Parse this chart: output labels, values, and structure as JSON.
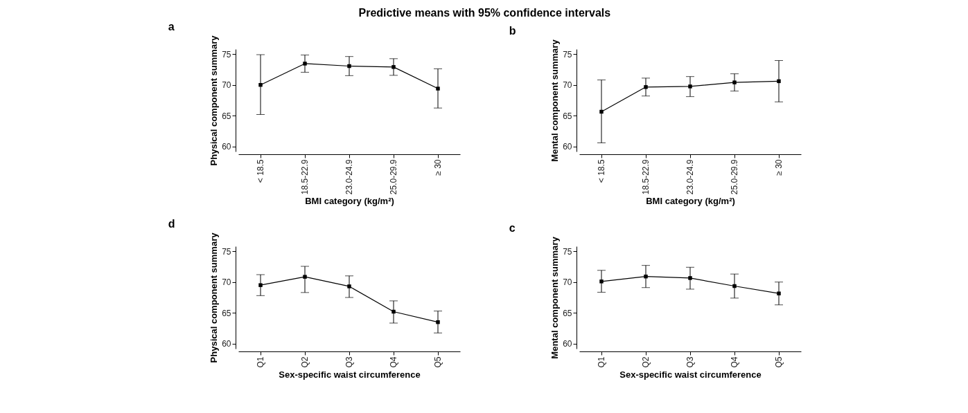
{
  "chart_data": [
    {
      "type": "line",
      "title": "Predictive means with 95% confidence intervals",
      "subtitle": "a",
      "xlabel": "BMI category (kg/m²)",
      "ylabel": "Physical component summary",
      "categories": [
        "< 18.5",
        "18.5-22.9",
        "23.0-24.9",
        "25.0-29.9",
        "≥ 30"
      ],
      "ylim": [
        59.2,
        75.8
      ],
      "yticks": [
        60,
        65,
        70,
        75
      ],
      "marker": "square",
      "grid": false,
      "legend": false,
      "series": [
        {
          "color": "#000000",
          "values": [
            70.0,
            73.45,
            73.05,
            72.9,
            69.4
          ],
          "errors": [
            [
              65.2,
              74.9
            ],
            [
              72.05,
              74.85
            ],
            [
              71.5,
              74.6
            ],
            [
              71.55,
              74.25
            ],
            [
              66.25,
              72.6
            ]
          ]
        }
      ]
    },
    {
      "type": "line",
      "subtitle": "b",
      "xlabel": "BMI category (kg/m²)",
      "ylabel": "Mental component summary",
      "categories": [
        "< 18.5",
        "18.5-22.9",
        "23.0-24.9",
        "25.0-29.9",
        "≥ 30"
      ],
      "ylim": [
        59.2,
        75.8
      ],
      "yticks": [
        60,
        65,
        70,
        75
      ],
      "marker": "square",
      "grid": false,
      "legend": false,
      "series": [
        {
          "color": "#000000",
          "values": [
            65.65,
            69.65,
            69.75,
            70.4,
            70.6
          ],
          "errors": [
            [
              60.6,
              70.8
            ],
            [
              68.2,
              71.1
            ],
            [
              68.1,
              71.35
            ],
            [
              69.0,
              71.8
            ],
            [
              67.25,
              73.95
            ]
          ]
        }
      ]
    },
    {
      "type": "line",
      "subtitle": "d",
      "xlabel": "Sex-specific waist circumference",
      "ylabel": "Physical component summary",
      "categories": [
        "Q1",
        "Q2",
        "Q3",
        "Q4",
        "Q5"
      ],
      "ylim": [
        59.2,
        75.8
      ],
      "yticks": [
        60,
        65,
        70,
        75
      ],
      "marker": "square",
      "grid": false,
      "legend": false,
      "series": [
        {
          "color": "#000000",
          "values": [
            69.5,
            70.85,
            69.3,
            65.2,
            63.5
          ],
          "errors": [
            [
              67.8,
              71.2
            ],
            [
              68.3,
              72.55
            ],
            [
              67.5,
              71.0
            ],
            [
              63.35,
              66.95
            ],
            [
              61.75,
              65.3
            ]
          ]
        }
      ]
    },
    {
      "type": "line",
      "subtitle": "c",
      "xlabel": "Sex-specific waist circumference",
      "ylabel": "Mental component summary",
      "categories": [
        "Q1",
        "Q2",
        "Q3",
        "Q4",
        "Q5"
      ],
      "ylim": [
        59.2,
        75.8
      ],
      "yticks": [
        60,
        65,
        70,
        75
      ],
      "marker": "square",
      "grid": false,
      "legend": false,
      "series": [
        {
          "color": "#000000",
          "values": [
            70.1,
            70.9,
            70.65,
            69.35,
            68.15
          ],
          "errors": [
            [
              68.35,
              71.9
            ],
            [
              69.1,
              72.7
            ],
            [
              68.85,
              72.4
            ],
            [
              67.4,
              71.3
            ],
            [
              66.3,
              70.0
            ]
          ]
        }
      ]
    }
  ]
}
